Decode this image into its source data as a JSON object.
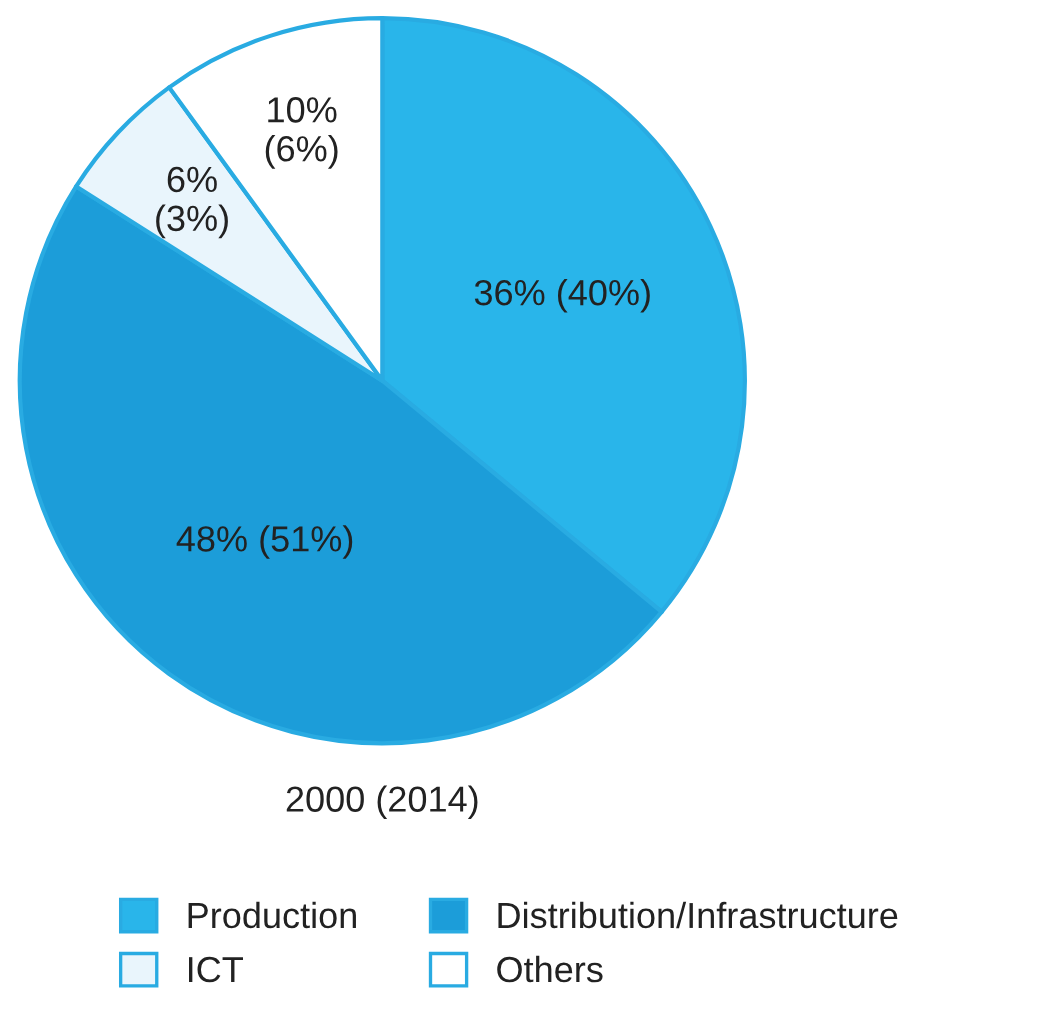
{
  "chart_data": {
    "type": "pie",
    "title": "2000 (2014)",
    "categories": [
      "Production",
      "Distribution/Infrastructure",
      "ICT",
      "Others"
    ],
    "values": [
      36,
      48,
      6,
      10
    ],
    "value_labels": [
      "36% (40%)",
      "48% (51%)",
      "6%\n(3%)",
      "10%\n(6%)"
    ],
    "colors": [
      "#29b5ea",
      "#1c9dd9",
      "#e9f5fc",
      "#ffffff"
    ],
    "legend": "bottom"
  }
}
